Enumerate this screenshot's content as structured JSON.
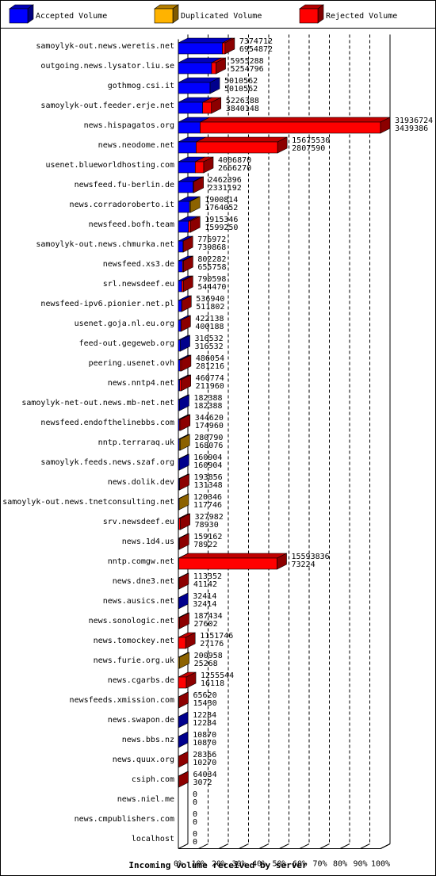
{
  "chart_data": {
    "type": "bar",
    "orientation": "horizontal",
    "stacked": true,
    "title": "Incoming volume received by server",
    "categories": [
      "samoylyk-out.news.weretis.net",
      "outgoing.news.lysator.liu.se",
      "gothmog.csi.it",
      "samoylyk-out.feeder.erje.net",
      "news.hispagatos.org",
      "news.neodome.net",
      "usenet.blueworldhosting.com",
      "newsfeed.fu-berlin.de",
      "news.corradoroberto.it",
      "newsfeed.bofh.team",
      "samoylyk-out.news.chmurka.net",
      "newsfeed.xs3.de",
      "srl.newsdeef.eu",
      "newsfeed-ipv6.pionier.net.pl",
      "usenet.goja.nl.eu.org",
      "feed-out.gegeweb.org",
      "peering.usenet.ovh",
      "news.nntp4.net",
      "samoylyk-net-out.news.mb-net.net",
      "newsfeed.endofthelinebbs.com",
      "nntp.terraraq.uk",
      "samoylyk.feeds.news.szaf.org",
      "news.dolik.dev",
      "samoylyk-out.news.tnetconsulting.net",
      "srv.newsdeef.eu",
      "news.1d4.us",
      "nntp.comgw.net",
      "news.dne3.net",
      "news.ausics.net",
      "news.sonologic.net",
      "news.tomockey.net",
      "news.furie.org.uk",
      "news.cgarbs.de",
      "newsfeeds.xmission.com",
      "news.swapon.de",
      "news.bbs.nz",
      "news.quux.org",
      "csiph.com",
      "news.niel.me",
      "news.cmpublishers.com",
      "localhost"
    ],
    "totals": [
      7374712,
      5955288,
      5010562,
      5226388,
      31936724,
      15675530,
      4006870,
      2462396,
      1900814,
      1915346,
      776972,
      802282,
      790598,
      536940,
      422138,
      316532,
      486054,
      460774,
      182388,
      344620,
      280790,
      160904,
      193856,
      120346,
      327982,
      159162,
      15593836,
      113352,
      32414,
      187434,
      1151746,
      200958,
      1255544,
      65620,
      12284,
      10870,
      28366,
      64034,
      0,
      0,
      0
    ],
    "series": [
      {
        "name": "Accepted Volume",
        "color": "#0000ff",
        "values": [
          6954872,
          5254796,
          5010562,
          3840148,
          3439386,
          2807590,
          2666270,
          2331192,
          1764052,
          1599250,
          739868,
          655758,
          544470,
          511802,
          400188,
          316532,
          281216,
          211960,
          182388,
          174960,
          168076,
          160904,
          131348,
          117746,
          78930,
          78922,
          73224,
          41142,
          32414,
          27602,
          27176,
          25268,
          16118,
          15430,
          12284,
          10870,
          10270,
          3072,
          0,
          0,
          0
        ]
      },
      {
        "name": "Duplicated Volume",
        "color": "#ffb300",
        "values": [
          0,
          0,
          0,
          0,
          0,
          0,
          0,
          0,
          136762,
          0,
          0,
          0,
          0,
          0,
          0,
          0,
          0,
          0,
          0,
          0,
          112714,
          0,
          0,
          2600,
          0,
          0,
          0,
          0,
          0,
          0,
          0,
          175690,
          0,
          0,
          0,
          0,
          0,
          0,
          0,
          0,
          0
        ]
      },
      {
        "name": "Rejected Volume",
        "color": "#ff0000",
        "values": [
          419840,
          700492,
          0,
          1386240,
          28497338,
          12867940,
          1340600,
          131204,
          0,
          316096,
          37104,
          146524,
          246128,
          25138,
          21950,
          0,
          204838,
          248814,
          0,
          169660,
          0,
          0,
          62508,
          0,
          249052,
          80240,
          15520612,
          72210,
          0,
          159832,
          1124570,
          0,
          1239426,
          50190,
          0,
          0,
          18096,
          60962,
          0,
          0,
          0
        ]
      }
    ],
    "xlim": [
      0,
      31936724
    ],
    "xticks": [
      {
        "value": 0,
        "label": "0%"
      },
      {
        "value": 3193672.4,
        "label": "10%"
      },
      {
        "value": 6387344.8,
        "label": "20%"
      },
      {
        "value": 9581017.2,
        "label": "30%"
      },
      {
        "value": 12774689.6,
        "label": "40%"
      },
      {
        "value": 15968362,
        "label": "50%"
      },
      {
        "value": 19162034.4,
        "label": "60%"
      },
      {
        "value": 22355706.8,
        "label": "70%"
      },
      {
        "value": 25549379.2,
        "label": "80%"
      },
      {
        "value": 28743051.6,
        "label": "90%"
      },
      {
        "value": 31936724,
        "label": "100%"
      }
    ],
    "grid": true
  }
}
